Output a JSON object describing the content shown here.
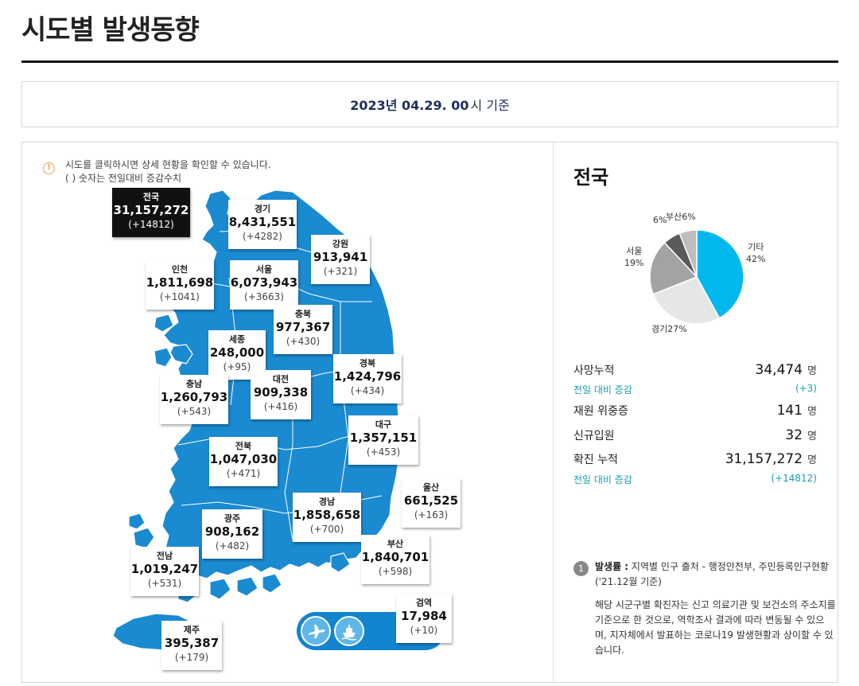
{
  "page": {
    "title": "시도별 발생동향"
  },
  "date": {
    "strong": "2023년 04.29. 00",
    "tail": "시 기준"
  },
  "notice": {
    "line1": "시도를 클릭하시면 상세 현황을 확인할 수 있습니다.",
    "line2": "( ) 숫자는 전일대비 증감수치"
  },
  "regions": {
    "total": {
      "name": "전국",
      "count": "31,157,272",
      "delta": "(+14812)"
    },
    "gyeonggi": {
      "name": "경기",
      "count": "8,431,551",
      "delta": "(+4282)"
    },
    "gangwon": {
      "name": "강원",
      "count": "913,941",
      "delta": "(+321)"
    },
    "incheon": {
      "name": "인천",
      "count": "1,811,698",
      "delta": "(+1041)"
    },
    "seoul": {
      "name": "서울",
      "count": "6,073,943",
      "delta": "(+3663)"
    },
    "chungbuk": {
      "name": "충북",
      "count": "977,367",
      "delta": "(+430)"
    },
    "sejong": {
      "name": "세종",
      "count": "248,000",
      "delta": "(+95)"
    },
    "gyeongbuk": {
      "name": "경북",
      "count": "1,424,796",
      "delta": "(+434)"
    },
    "chungnam": {
      "name": "충남",
      "count": "1,260,793",
      "delta": "(+543)"
    },
    "daejeon": {
      "name": "대전",
      "count": "909,338",
      "delta": "(+416)"
    },
    "daegu": {
      "name": "대구",
      "count": "1,357,151",
      "delta": "(+453)"
    },
    "jeonbuk": {
      "name": "전북",
      "count": "1,047,030",
      "delta": "(+471)"
    },
    "ulsan": {
      "name": "울산",
      "count": "661,525",
      "delta": "(+163)"
    },
    "gyeongnam": {
      "name": "경남",
      "count": "1,858,658",
      "delta": "(+700)"
    },
    "gwangju": {
      "name": "광주",
      "count": "908,162",
      "delta": "(+482)"
    },
    "busan": {
      "name": "부산",
      "count": "1,840,701",
      "delta": "(+598)"
    },
    "jeonnam": {
      "name": "전남",
      "count": "1,019,247",
      "delta": "(+531)"
    },
    "quarantine": {
      "name": "검역",
      "count": "17,984",
      "delta": "(+10)"
    },
    "jeju": {
      "name": "제주",
      "count": "395,387",
      "delta": "(+179)"
    }
  },
  "transport": {
    "airport_icon": "airplane-icon",
    "port_icon": "ship-icon"
  },
  "right": {
    "title": "전국",
    "pie": {
      "slices": [
        {
          "label": "기타",
          "pct": "42%",
          "value": 42,
          "color": "#00b8ee"
        },
        {
          "label": "경기",
          "pct": "27%",
          "value": 27,
          "color": "#e6e6e6"
        },
        {
          "label": "서울",
          "pct": "19%",
          "value": 19,
          "color": "#a3a3a3"
        },
        {
          "label": "6%",
          "pct": "",
          "value": 6,
          "color": "#5a5a5a"
        },
        {
          "label": "부산",
          "pct": "6%",
          "value": 6,
          "color": "#bdbdbd"
        }
      ]
    },
    "stats": {
      "deaths": {
        "label": "사망누적",
        "value": "34,474",
        "unit": "명"
      },
      "deaths_delta": {
        "label": "전일 대비 증감",
        "value": "(+3)"
      },
      "icu": {
        "label": "재원 위중증",
        "value": "141",
        "unit": "명"
      },
      "new_admit": {
        "label": "신규입원",
        "value": "32",
        "unit": "명"
      },
      "confirmed": {
        "label": "확진 누적",
        "value": "31,157,272",
        "unit": "명"
      },
      "confirmed_delta": {
        "label": "전일 대비 증감",
        "value": "(+14812)"
      }
    },
    "footnote": {
      "num": "1",
      "head_bold": "발생률 :",
      "head_text": " 지역별 인구 출처 - 행정안전부, 주민등록인구현황 ('21.12월 기준)",
      "body": "해당 시군구별 확진자는 신고 의료기관 및 보건소의 주소지를 기준으로 한 것으로, 역학조사 결과에 따라 변동될 수 있으며, 지자체에서 발표하는 코로나19 발생현황과 상이할 수 있습니다."
    }
  }
}
